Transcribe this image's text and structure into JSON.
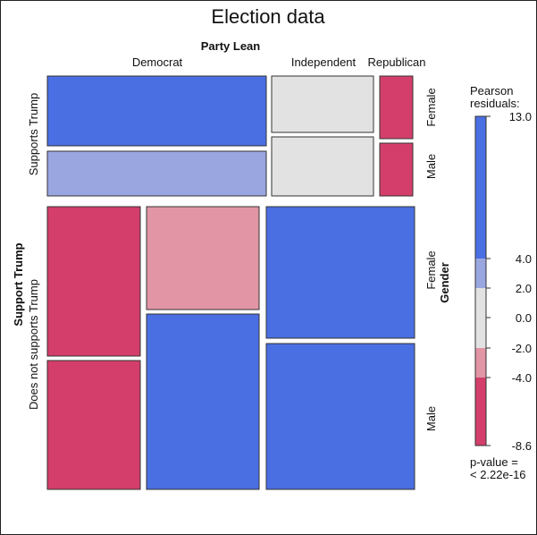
{
  "chart_data": {
    "type": "mosaic",
    "title": "Election data",
    "variables": {
      "party_lean": {
        "label": "Party Lean",
        "levels": [
          "Democrat",
          "Independent",
          "Republican"
        ]
      },
      "support_trump": {
        "label": "Support Trump",
        "levels": [
          "Supports Trump",
          "Does not supports Trump"
        ]
      },
      "gender": {
        "label": "Gender",
        "levels": [
          "Female",
          "Male"
        ]
      }
    },
    "tiles": [
      {
        "support": "Supports Trump",
        "party": "Democrat",
        "gender": "Female",
        "residual_band": ">4"
      },
      {
        "support": "Supports Trump",
        "party": "Democrat",
        "gender": "Male",
        "residual_band": "2 to 4"
      },
      {
        "support": "Supports Trump",
        "party": "Independent",
        "gender": "Female",
        "residual_band": "-2 to 2"
      },
      {
        "support": "Supports Trump",
        "party": "Independent",
        "gender": "Male",
        "residual_band": "-2 to 2"
      },
      {
        "support": "Supports Trump",
        "party": "Republican",
        "gender": "Female",
        "residual_band": "<-4"
      },
      {
        "support": "Supports Trump",
        "party": "Republican",
        "gender": "Male",
        "residual_band": "<-4"
      },
      {
        "support": "Does not supports Trump",
        "party": "Democrat",
        "gender": "Female",
        "residual_band": "<-4"
      },
      {
        "support": "Does not supports Trump",
        "party": "Democrat",
        "gender": "Male",
        "residual_band": "<-4"
      },
      {
        "support": "Does not supports Trump",
        "party": "Independent",
        "gender": "Female",
        "residual_band": "-4 to -2"
      },
      {
        "support": "Does not supports Trump",
        "party": "Independent",
        "gender": "Male",
        "residual_band": ">4"
      },
      {
        "support": "Does not supports Trump",
        "party": "Republican",
        "gender": "Female",
        "residual_band": ">4"
      },
      {
        "support": "Does not supports Trump",
        "party": "Republican",
        "gender": "Male",
        "residual_band": ">4"
      }
    ],
    "legend": {
      "title_line1": "Pearson",
      "title_line2": "residuals:",
      "ticks": [
        "13.0",
        "4.0",
        "2.0",
        "0.0",
        "-2.0",
        "-4.0",
        "-8.6"
      ],
      "range": [
        -8.6,
        13.0
      ],
      "p_value_line1": "p-value =",
      "p_value_line2": "< 2.22e-16"
    },
    "colors": {
      "strong_positive": "#4a6fe3",
      "moderate_positive": "#9aa6e0",
      "neutral": "#e2e2e2",
      "moderate_negative": "#e295a5",
      "strong_negative": "#d33f6a"
    }
  }
}
